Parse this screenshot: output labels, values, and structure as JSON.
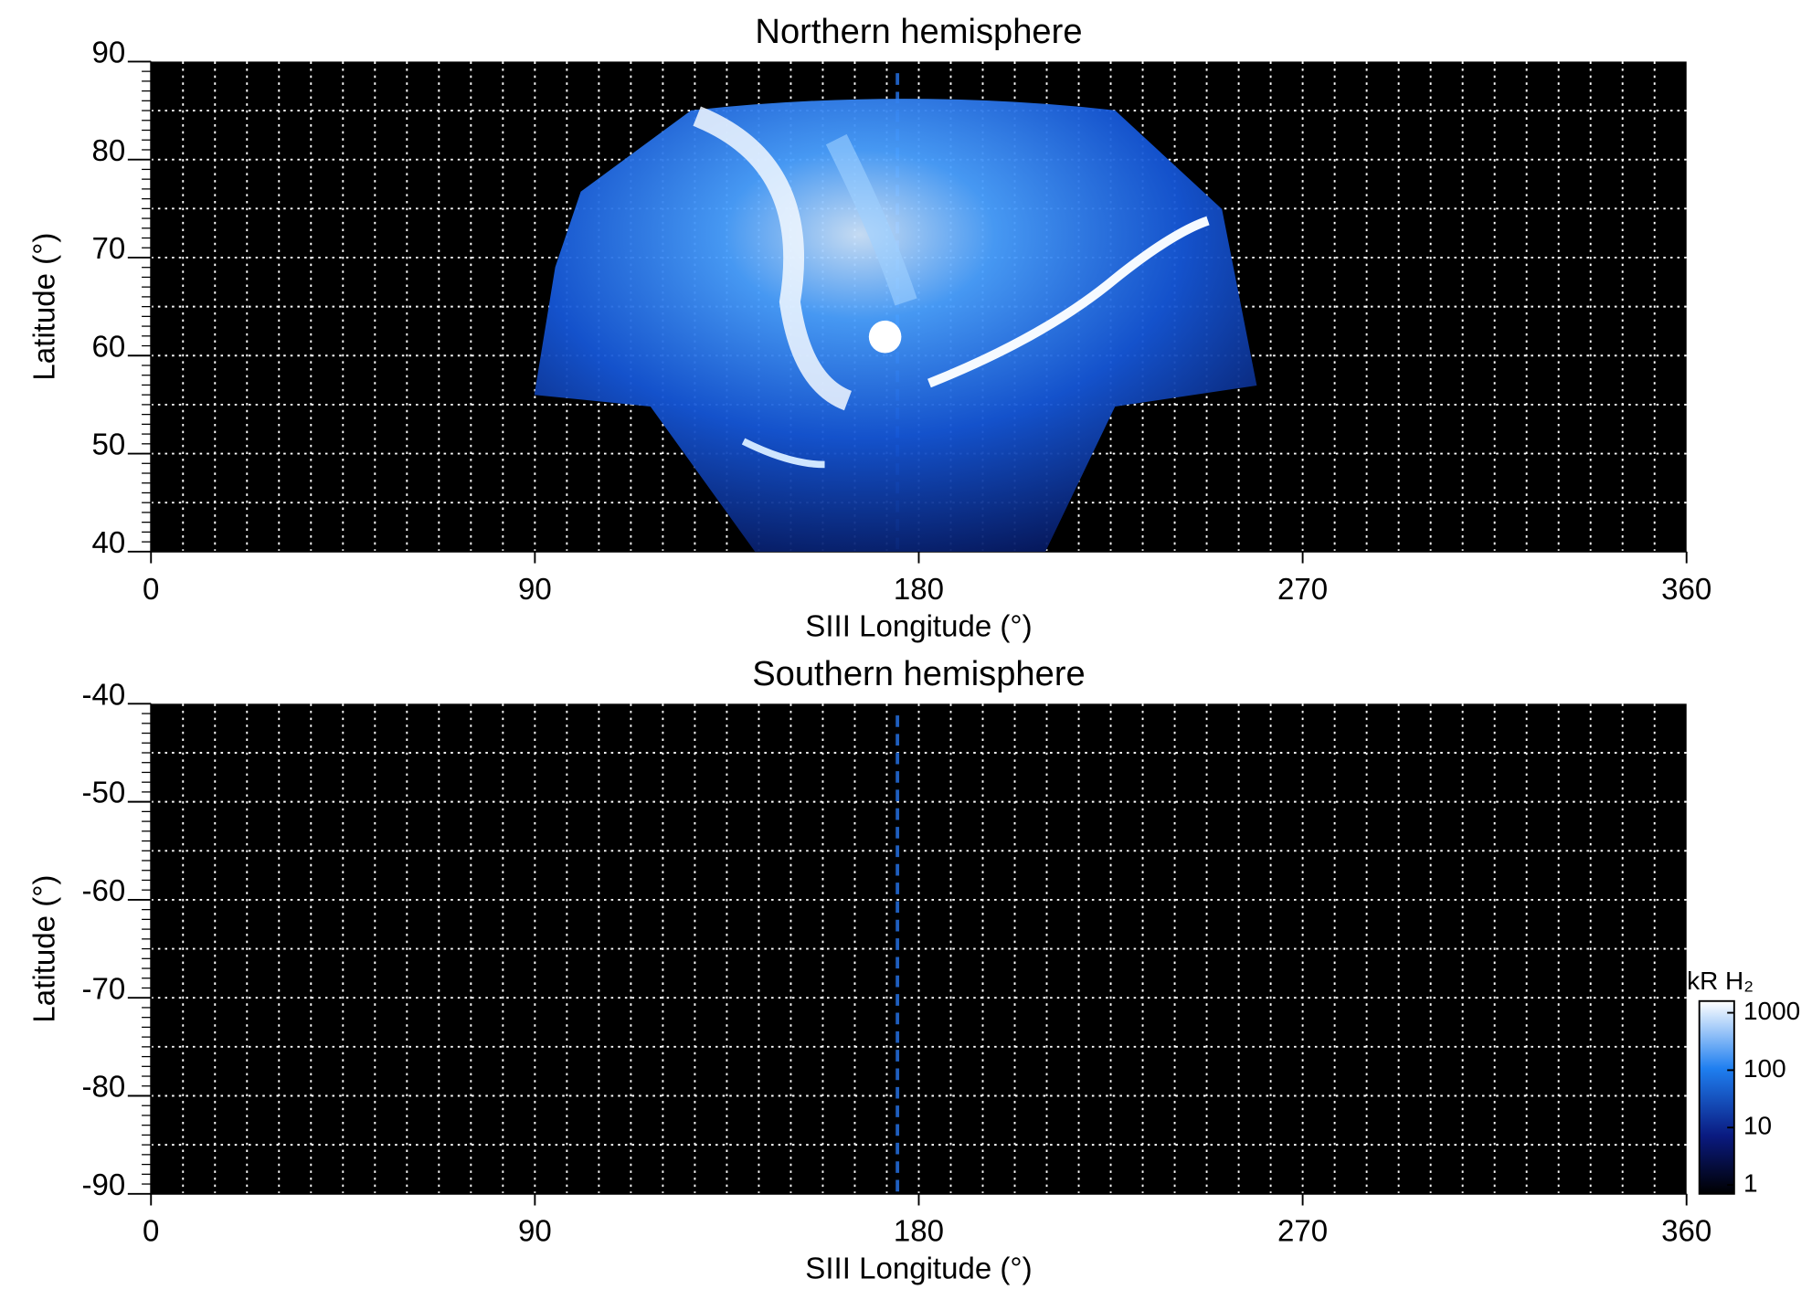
{
  "chart_data": [
    {
      "type": "heatmap",
      "title": "Northern hemisphere",
      "xlabel": "SIII Longitude (°)",
      "ylabel": "Latitude (°)",
      "xlim": [
        0,
        360
      ],
      "xticks": [
        0,
        90,
        180,
        270,
        360
      ],
      "ylim": [
        40,
        90
      ],
      "yticks": [
        40,
        50,
        60,
        70,
        80,
        90
      ],
      "grid": {
        "x_step": 7.5,
        "y_step": 5,
        "color": "#ffffff"
      },
      "reference_x": 175,
      "reference_color": "#1f5fbf",
      "background": "#000000"
    },
    {
      "type": "heatmap",
      "title": "Southern hemisphere",
      "xlabel": "SIII Longitude (°)",
      "ylabel": "Latitude (°)",
      "xlim": [
        0,
        360
      ],
      "xticks": [
        0,
        90,
        180,
        270,
        360
      ],
      "ylim": [
        -90,
        -40
      ],
      "yticks": [
        -90,
        -80,
        -70,
        -60,
        -50,
        -40
      ],
      "grid": {
        "x_step": 7.5,
        "y_step": 5,
        "color": "#ffffff"
      },
      "reference_x": 175,
      "reference_color": "#1f5fbf",
      "background": "#000000",
      "colorbar": {
        "label": "kR H₂",
        "log": true,
        "lim": [
          0.7,
          1600
        ],
        "ticks": [
          1,
          10,
          100,
          1000
        ]
      }
    }
  ]
}
